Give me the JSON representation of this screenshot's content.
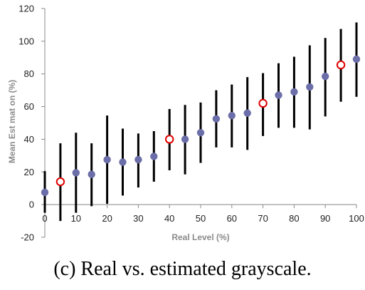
{
  "caption": "(c) Real vs. estimated grayscale.",
  "chart_data": {
    "type": "scatter",
    "xlabel": "Real Level (%)",
    "ylabel": "Mean Est mat on (%)",
    "xlim": [
      0,
      100
    ],
    "ylim": [
      -20,
      120
    ],
    "x_ticks": [
      0,
      10,
      20,
      30,
      40,
      50,
      60,
      70,
      80,
      90,
      100
    ],
    "y_ticks": [
      -20,
      0,
      20,
      40,
      60,
      80,
      100,
      120
    ],
    "grid": false,
    "colors": {
      "filled": "#6b6ea8",
      "highlight": "#e00000",
      "error_bar": "#000000"
    },
    "series": [
      {
        "marker": "filled-circle",
        "points": [
          {
            "x": 0,
            "y": 7.5,
            "low": -5,
            "high": 20.5
          },
          {
            "x": 10,
            "y": 19.5,
            "low": -5,
            "high": 44
          },
          {
            "x": 15,
            "y": 18.5,
            "low": -1,
            "high": 37.5
          },
          {
            "x": 20,
            "y": 27.5,
            "low": 0.5,
            "high": 54.5
          },
          {
            "x": 25,
            "y": 26,
            "low": 5.5,
            "high": 46.5
          },
          {
            "x": 30,
            "y": 27.5,
            "low": 10.5,
            "high": 43.5
          },
          {
            "x": 35,
            "y": 29.5,
            "low": 14,
            "high": 45
          },
          {
            "x": 45,
            "y": 40,
            "low": 18.5,
            "high": 61
          },
          {
            "x": 50,
            "y": 44,
            "low": 25.5,
            "high": 62.5
          },
          {
            "x": 55,
            "y": 52.5,
            "low": 35,
            "high": 70
          },
          {
            "x": 60,
            "y": 54.5,
            "low": 35,
            "high": 73.5
          },
          {
            "x": 65,
            "y": 56,
            "low": 33.5,
            "high": 78
          },
          {
            "x": 75,
            "y": 67,
            "low": 47,
            "high": 86.5
          },
          {
            "x": 80,
            "y": 69,
            "low": 47,
            "high": 90.5
          },
          {
            "x": 85,
            "y": 72,
            "low": 46,
            "high": 97.5
          },
          {
            "x": 90,
            "y": 78.5,
            "low": 54,
            "high": 102
          },
          {
            "x": 100,
            "y": 89,
            "low": 66,
            "high": 111.5
          }
        ]
      },
      {
        "marker": "open-circle",
        "points": [
          {
            "x": 5,
            "y": 14,
            "low": -10,
            "high": 37.5
          },
          {
            "x": 40,
            "y": 40,
            "low": 21,
            "high": 58.5
          },
          {
            "x": 70,
            "y": 62,
            "low": 42,
            "high": 80.5
          },
          {
            "x": 95,
            "y": 85.5,
            "low": 63,
            "high": 107.5
          }
        ]
      }
    ]
  }
}
